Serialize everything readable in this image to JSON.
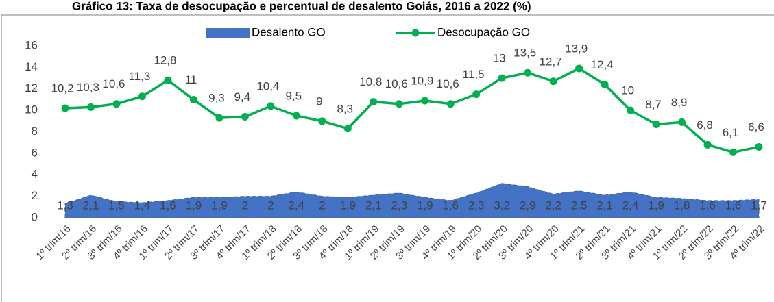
{
  "chart_data": {
    "type": "line_area",
    "title": "Gráfico 13: Taxa de desocupação e percentual de desalento Goiás, 2016 a 2022 (%)",
    "categories": [
      "1º trim/16",
      "2º trim/16",
      "3º trim/16",
      "4º trim/16",
      "1º trim/17",
      "2º trim/17",
      "3º trim/17",
      "4º trim/17",
      "1º trim/18",
      "2º trim/18",
      "3º trim/18",
      "4º trim/18",
      "1º trim/19",
      "2º trim/19",
      "3º trim/19",
      "4º trim/19",
      "1º trim/20",
      "2º trim/20",
      "3º trim/20",
      "4º trim/20",
      "1º trim/21",
      "2º trim/21",
      "3º trim/21",
      "4º trim/21",
      "1º trim/22",
      "2º trim/22",
      "3º trim/22",
      "4º trim/22"
    ],
    "series": [
      {
        "name": "Desalento GO",
        "kind": "area",
        "color": "#4472c4",
        "values": [
          1.3,
          2.1,
          1.5,
          1.4,
          1.6,
          1.9,
          1.9,
          2,
          2,
          2.4,
          2,
          1.9,
          2.1,
          2.3,
          1.9,
          1.6,
          2.3,
          3.2,
          2.9,
          2.2,
          2.5,
          2.1,
          2.4,
          1.9,
          1.8,
          1.6,
          1.6,
          1.7
        ],
        "value_labels": [
          "1,3",
          "2,1",
          "1,5",
          "1,4",
          "1,6",
          "1,9",
          "1,9",
          "2",
          "2",
          "2,4",
          "2",
          "1,9",
          "2,1",
          "2,3",
          "1,9",
          "1,6",
          "2,3",
          "3,2",
          "2,9",
          "2,2",
          "2,5",
          "2,1",
          "2,4",
          "1,9",
          "1,8",
          "1,6",
          "1,6",
          "1,7"
        ]
      },
      {
        "name": "Desocupação GO",
        "kind": "line",
        "color": "#00b050",
        "values": [
          10.2,
          10.3,
          10.6,
          11.3,
          12.8,
          11,
          9.3,
          9.4,
          10.4,
          9.5,
          9,
          8.3,
          10.8,
          10.6,
          10.9,
          10.6,
          11.5,
          13,
          13.5,
          12.7,
          13.9,
          12.4,
          10,
          8.7,
          8.9,
          6.8,
          6.1,
          6.6
        ],
        "value_labels": [
          "10,2",
          "10,3",
          "10,6",
          "11,3",
          "12,8",
          "11",
          "9,3",
          "9,4",
          "10,4",
          "9,5",
          "9",
          "8,3",
          "10,8",
          "10,6",
          "10,9",
          "10,6",
          "11,5",
          "13",
          "13,5",
          "12,7",
          "13,9",
          "12,4",
          "10",
          "8,7",
          "8,9",
          "6,8",
          "6,1",
          "6,6"
        ]
      }
    ],
    "ylim": [
      0,
      16
    ],
    "yticks": [
      0,
      2,
      4,
      6,
      8,
      10,
      12,
      14,
      16
    ],
    "legend": "top"
  }
}
